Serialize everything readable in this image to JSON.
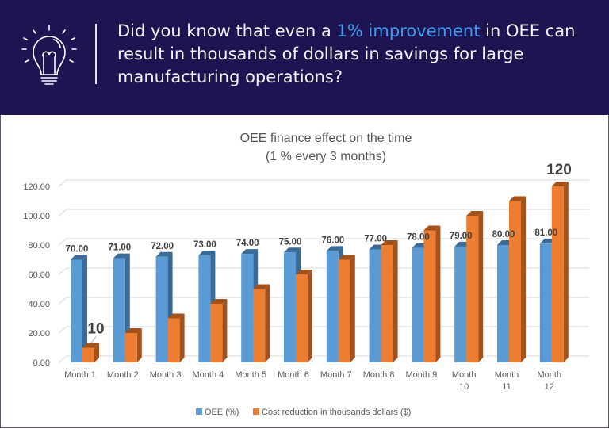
{
  "header": {
    "text_before": "Did you know that even a ",
    "highlight": "1% improvement",
    "text_after": " in OEE can result in thousands of dollars in savings for large manufacturing operations?",
    "icon": "lightbulb-icon"
  },
  "colors": {
    "header_bg": "#1f1452",
    "highlight": "#3d9bf0",
    "oee": "#5b9bd5",
    "cost": "#ed7d31"
  },
  "chart_data": {
    "type": "bar",
    "title": "OEE finance effect on the time",
    "subtitle": "(1 % every 3 months)",
    "categories": [
      "Month 1",
      "Month 2",
      "Month 3",
      "Month 4",
      "Month 5",
      "Month 6",
      "Month 7",
      "Month 8",
      "Month 9",
      "Month 10",
      "Month 11",
      "Month 12"
    ],
    "series": [
      {
        "name": "OEE (%)",
        "values": [
          70,
          71,
          72,
          73,
          74,
          75,
          76,
          77,
          78,
          79,
          80,
          81
        ],
        "labels": [
          "70.00",
          "71.00",
          "72.00",
          "73.00",
          "74.00",
          "75.00",
          "76.00",
          "77.00",
          "78.00",
          "79.00",
          "80.00",
          "81.00"
        ]
      },
      {
        "name": "Cost reduction in thousands dollars ($)",
        "values": [
          10,
          20,
          30,
          40,
          50,
          60,
          70,
          80,
          90,
          100,
          110,
          120
        ]
      }
    ],
    "annotations": [
      "10",
      "120"
    ],
    "yticks": [
      "0.00",
      "20.00",
      "40.00",
      "60.00",
      "80.00",
      "100.00",
      "120.00"
    ],
    "ylim": [
      0,
      120
    ],
    "legend": "bottom"
  }
}
